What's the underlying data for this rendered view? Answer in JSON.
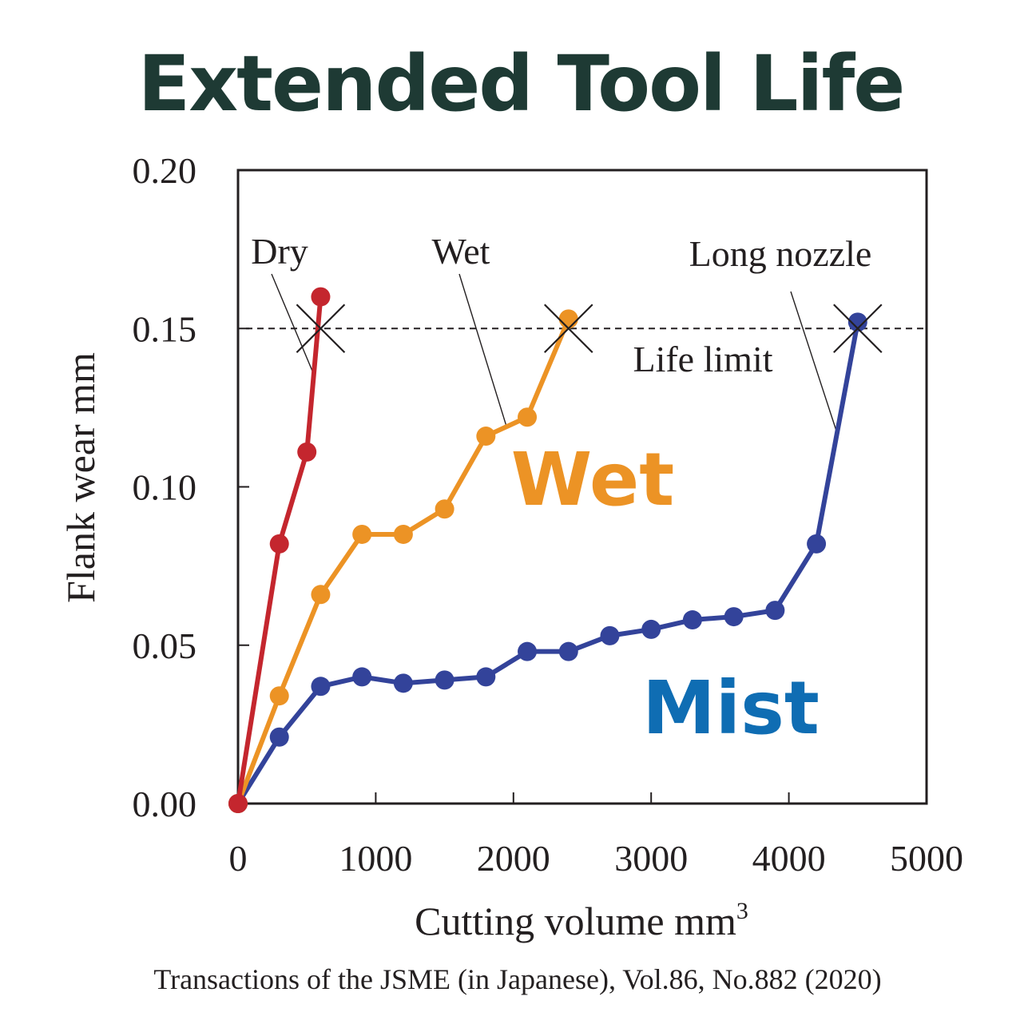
{
  "title": "Extended Tool Life",
  "source": "Transactions of the JSME (in Japanese), Vol.86, No.882 (2020)",
  "colors": {
    "title": "#1e3a34",
    "dry": "#c4262e",
    "wet": "#ec9325",
    "mist": "#33439a",
    "mist_label": "#0f6db3",
    "wet_label": "#ec9325",
    "ink": "#231f20"
  },
  "chart_data": {
    "type": "line",
    "xlabel": "Cutting volume mm",
    "xlabel_sup": "3",
    "ylabel": "Flank wear mm",
    "xlim": [
      0,
      5000
    ],
    "ylim": [
      0,
      0.2
    ],
    "x_ticks": [
      "0",
      "1000",
      "2000",
      "3000",
      "4000",
      "5000"
    ],
    "y_ticks": [
      "0.00",
      "0.05",
      "0.10",
      "0.15",
      "0.20"
    ],
    "grid": false,
    "life_limit": {
      "value": 0.15,
      "label": "Life limit"
    },
    "series": [
      {
        "name": "Dry",
        "key": "dry",
        "x": [
          0,
          300,
          500,
          600
        ],
        "y": [
          0.0,
          0.082,
          0.111,
          0.16
        ],
        "end_marker_x": 600
      },
      {
        "name": "Wet",
        "key": "wet",
        "x": [
          0,
          300,
          600,
          900,
          1200,
          1500,
          1800,
          2100,
          2400
        ],
        "y": [
          0.0,
          0.034,
          0.066,
          0.085,
          0.085,
          0.093,
          0.116,
          0.122,
          0.153
        ],
        "end_marker_x": 2400
      },
      {
        "name": "Long nozzle",
        "key": "mist",
        "x": [
          0,
          300,
          600,
          900,
          1200,
          1500,
          1800,
          2100,
          2400,
          2700,
          3000,
          3300,
          3600,
          3900,
          4200,
          4500
        ],
        "y": [
          0.0,
          0.021,
          0.037,
          0.04,
          0.038,
          0.039,
          0.04,
          0.048,
          0.048,
          0.053,
          0.055,
          0.058,
          0.059,
          0.061,
          0.082,
          0.152
        ],
        "end_marker_x": 4500
      }
    ],
    "annotations": {
      "dry": "Dry",
      "wet": "Wet",
      "long_nozzle": "Long nozzle"
    },
    "big_labels": {
      "wet": "Wet",
      "mist": "Mist"
    }
  }
}
